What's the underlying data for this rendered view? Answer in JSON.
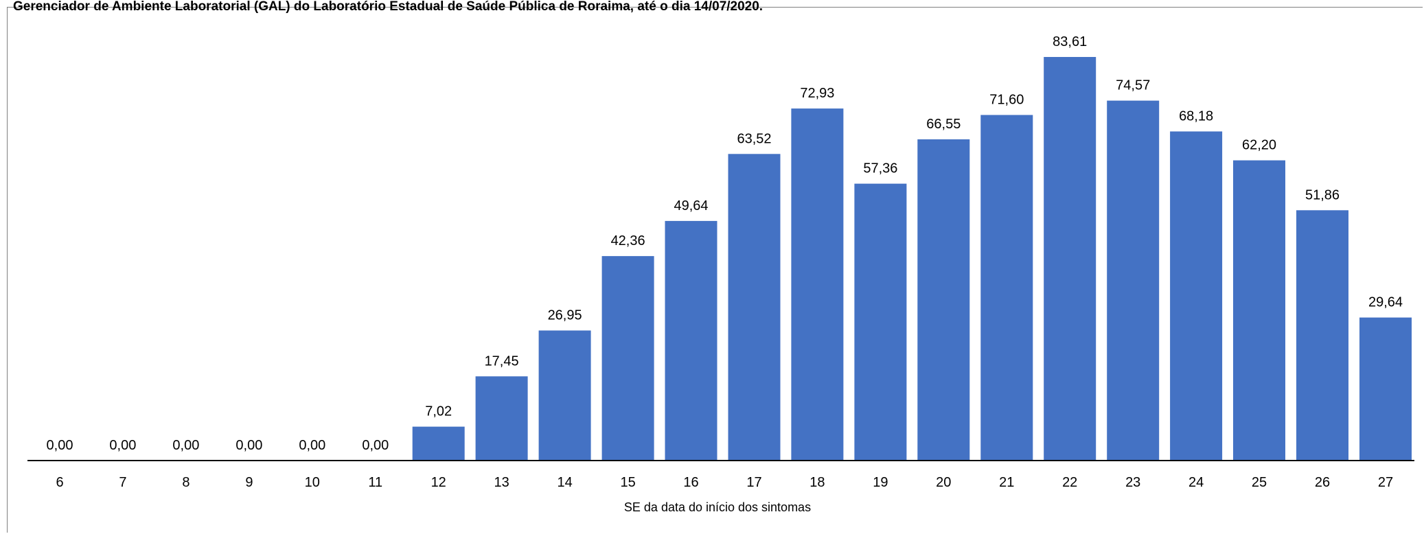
{
  "caption": "Gerenciador de Ambiente Laboratorial (GAL) do Laboratório Estadual de Saúde Pública de Roraima, até o dia 14/07/2020.",
  "chart_data": {
    "type": "bar",
    "title": "",
    "xlabel": "SE da data do início dos sintomas",
    "ylabel": "",
    "categories": [
      "6",
      "7",
      "8",
      "9",
      "10",
      "11",
      "12",
      "13",
      "14",
      "15",
      "16",
      "17",
      "18",
      "19",
      "20",
      "21",
      "22",
      "23",
      "24",
      "25",
      "26",
      "27"
    ],
    "values": [
      0.0,
      0.0,
      0.0,
      0.0,
      0.0,
      0.0,
      7.02,
      17.45,
      26.95,
      42.36,
      49.64,
      63.52,
      72.93,
      57.36,
      66.55,
      71.6,
      83.61,
      74.57,
      68.18,
      62.2,
      51.86,
      29.64
    ],
    "value_labels": [
      "0,00",
      "0,00",
      "0,00",
      "0,00",
      "0,00",
      "0,00",
      "7,02",
      "17,45",
      "26,95",
      "42,36",
      "49,64",
      "63,52",
      "72,93",
      "57,36",
      "66,55",
      "71,60",
      "83,61",
      "74,57",
      "68,18",
      "62,20",
      "51,86",
      "29,64"
    ],
    "ylim": [
      0,
      83.61
    ],
    "bar_color": "#4472C4",
    "grid": false,
    "legend": "none"
  }
}
